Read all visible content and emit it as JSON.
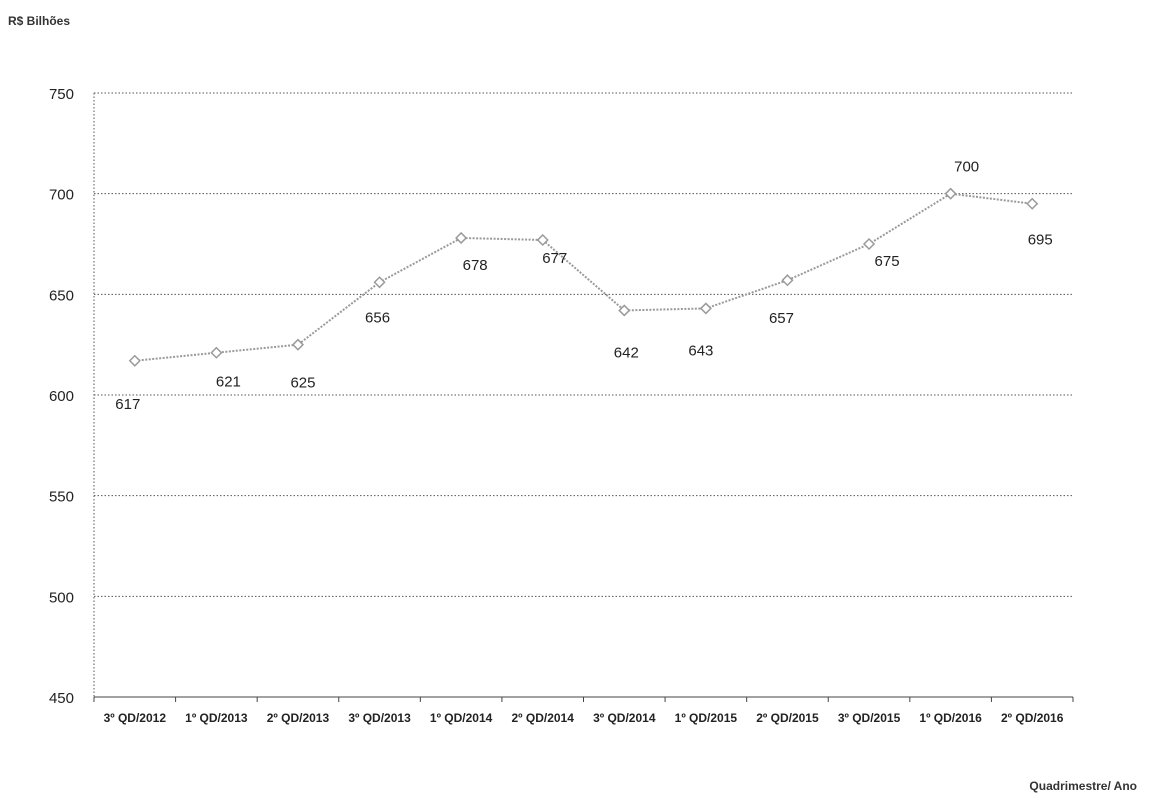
{
  "chart_data": {
    "type": "line",
    "title": "",
    "ylabel": "R$ Bilhões",
    "xlabel": "Quadrimestre/ Ano",
    "ylim": [
      450,
      750
    ],
    "yticks": [
      450,
      500,
      550,
      600,
      650,
      700,
      750
    ],
    "categories": [
      "3º QD/2012",
      "1º QD/2013",
      "2º QD/2013",
      "3º QD/2013",
      "1º QD/2014",
      "2º QD/2014",
      "3º QD/2014",
      "1º QD/2015",
      "2º QD/2015",
      "3º QD/2015",
      "1º QD/2016",
      "2º QD/2016"
    ],
    "series": [
      {
        "values": [
          617,
          621,
          625,
          656,
          678,
          677,
          642,
          643,
          657,
          675,
          700,
          695
        ]
      }
    ],
    "grid": true,
    "colors": {
      "line": "#9a9a9a",
      "marker": "#9a9a9a",
      "grid": "#555555",
      "text": "#222222"
    }
  }
}
